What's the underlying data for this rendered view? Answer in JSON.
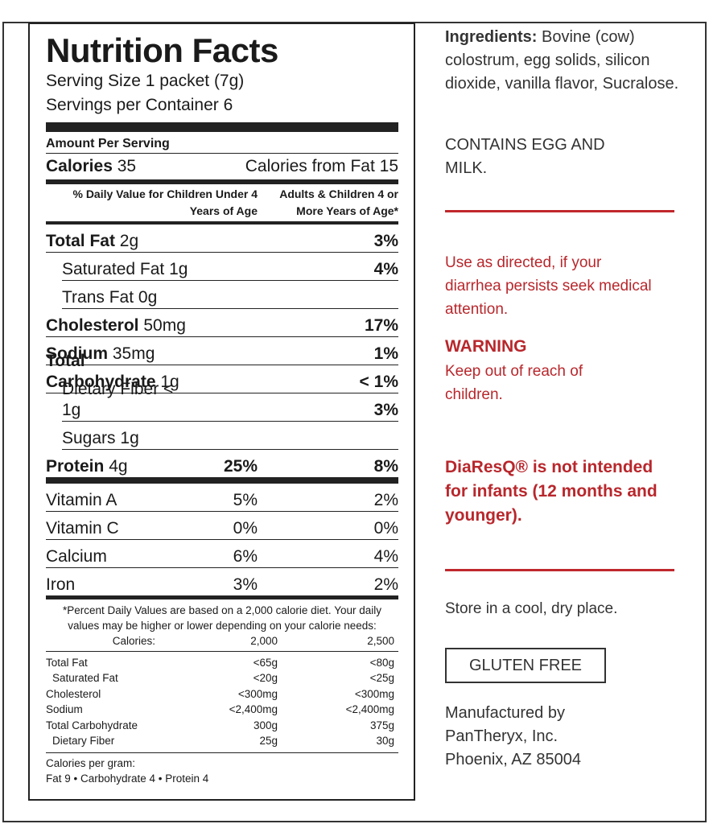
{
  "nutrition": {
    "title": "Nutrition Facts",
    "serving_size": "Serving Size 1 packet (7g)",
    "servings": "Servings per Container 6",
    "amount_per_serving": "Amount Per Serving",
    "calories": {
      "label": "Calories",
      "amount": "35",
      "from_fat": "Calories from Fat 15"
    },
    "dv_header": {
      "children": "% Daily Value for Children Under 4 Years of Age",
      "adults": "Adults & Children 4 or More Years of Age*"
    },
    "nutrients": [
      {
        "name": "Total Fat",
        "amount": "2g",
        "adults": "3%"
      },
      {
        "name": "Saturated Fat",
        "amount": "1g",
        "adults": "4%"
      },
      {
        "name": "Trans Fat",
        "amount": "0g"
      },
      {
        "name": "Cholesterol",
        "amount": "50mg",
        "adults": "17%"
      },
      {
        "name": "Sodium",
        "amount": "35mg",
        "adults": "1%"
      },
      {
        "name": "Total Carbohydrate",
        "amount": "1g",
        "adults": "< 1%"
      },
      {
        "name": "Dietary Fiber",
        "amount": "< 1g",
        "adults": "3%"
      },
      {
        "name": "Sugars",
        "amount": "1g"
      },
      {
        "name": "Protein",
        "amount": "4g",
        "children": "25%",
        "adults": "8%"
      }
    ],
    "vitamins": [
      {
        "name": "Vitamin A",
        "children": "5%",
        "adults": "2%"
      },
      {
        "name": "Vitamin C",
        "children": "0%",
        "adults": "0%"
      },
      {
        "name": "Calcium",
        "children": "6%",
        "adults": "4%"
      },
      {
        "name": "Iron",
        "children": "3%",
        "adults": "2%"
      }
    ],
    "footnote": "*Percent Daily Values are based on a 2,000 calorie diet. Your daily values may be higher or lower depending on your calorie needs:",
    "reference": {
      "header": [
        "Calories:",
        "2,000",
        "2,500"
      ],
      "rows": [
        [
          "Total Fat",
          "<65g",
          "<80g"
        ],
        [
          "Saturated Fat",
          "<20g",
          "<25g"
        ],
        [
          "Cholesterol",
          "<300mg",
          "<300mg"
        ],
        [
          "Sodium",
          "<2,400mg",
          "<2,400mg"
        ],
        [
          "Total Carbohydrate",
          "300g",
          "375g"
        ],
        [
          "Dietary Fiber",
          "25g",
          "30g"
        ]
      ]
    },
    "calories_per_gram": "Calories per gram:",
    "per_gram": "Fat 9 • Carbohydrate 4 • Protein 4"
  },
  "side": {
    "ingredients_label": "Ingredients:",
    "ingredients": "Bovine (cow) colostrum, egg solids, silicon dioxide, vanilla flavor, Sucralose.",
    "contains": "CONTAINS EGG AND MILK.",
    "directions": "Use as directed, if your diarrhea persists seek medical attention.",
    "warning_title": "WARNING",
    "warning": "Keep out of reach of children.",
    "notice": "DiaResQ® is not intended for infants (12 months and younger).",
    "storage": "Store in a cool, dry place.",
    "badge": "GLUTEN FREE",
    "manufacturer": [
      "Manufactured by",
      "PanTheryx, Inc.",
      "Phoenix, AZ 85004"
    ]
  }
}
